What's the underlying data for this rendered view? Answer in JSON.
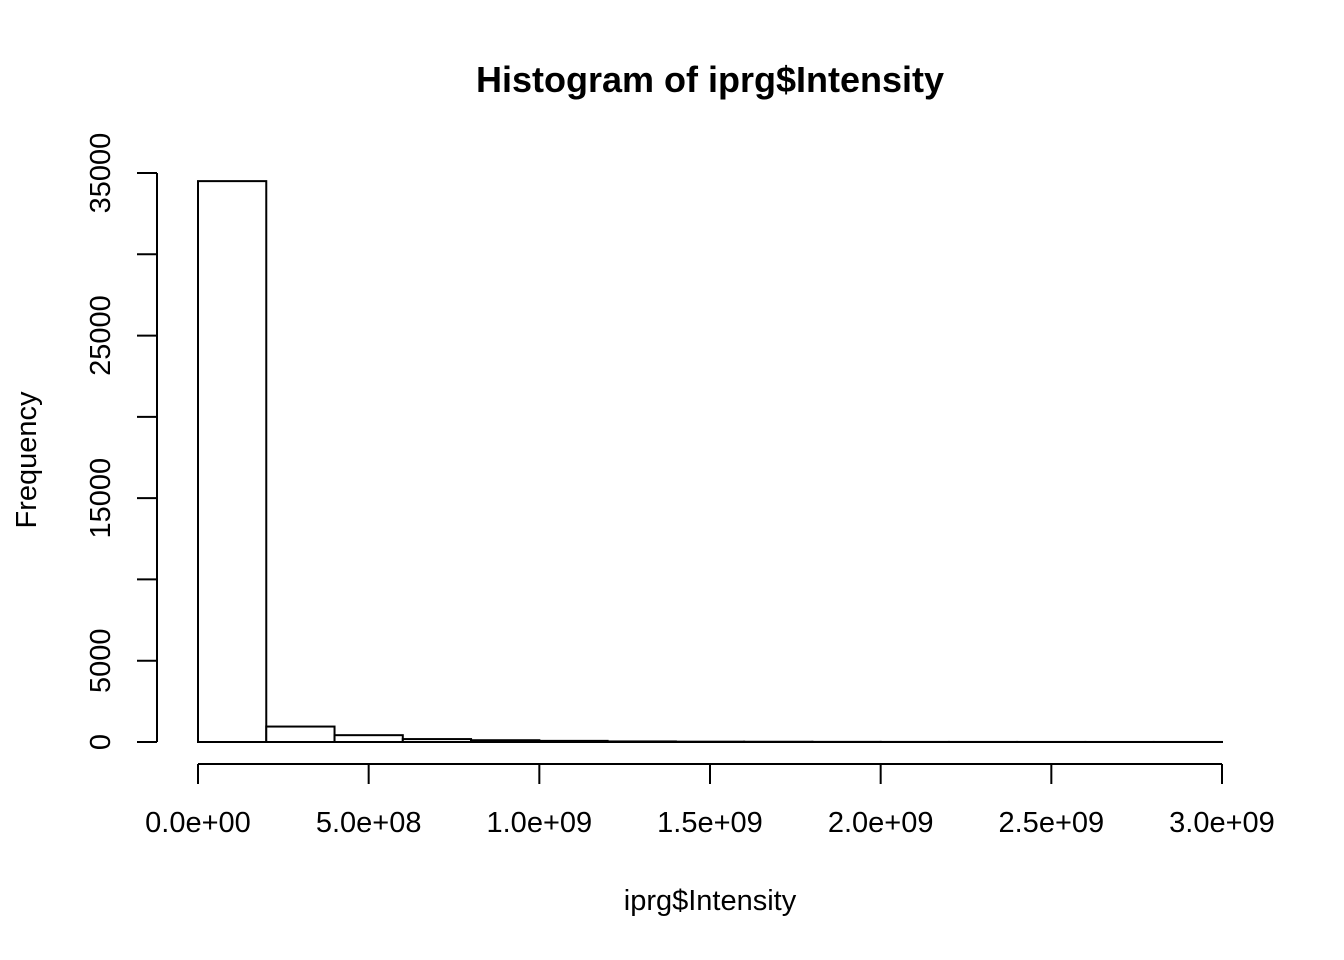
{
  "chart_data": {
    "type": "bar",
    "title": "Histogram of iprg$Intensity",
    "xlabel": "iprg$Intensity",
    "ylabel": "Frequency",
    "bin_width": 200000000,
    "bins": [
      {
        "start": 0,
        "end": 200000000,
        "count": 34500
      },
      {
        "start": 200000000,
        "end": 400000000,
        "count": 950
      },
      {
        "start": 400000000,
        "end": 600000000,
        "count": 420
      },
      {
        "start": 600000000,
        "end": 800000000,
        "count": 180
      },
      {
        "start": 800000000,
        "end": 1000000000,
        "count": 110
      },
      {
        "start": 1000000000,
        "end": 1200000000,
        "count": 70
      },
      {
        "start": 1200000000,
        "end": 1400000000,
        "count": 35
      },
      {
        "start": 1400000000,
        "end": 1600000000,
        "count": 20
      },
      {
        "start": 1600000000,
        "end": 1800000000,
        "count": 15
      },
      {
        "start": 1800000000,
        "end": 2000000000,
        "count": 8
      },
      {
        "start": 2000000000,
        "end": 2200000000,
        "count": 5
      },
      {
        "start": 2200000000,
        "end": 2400000000,
        "count": 4
      },
      {
        "start": 2400000000,
        "end": 2600000000,
        "count": 3
      },
      {
        "start": 2600000000,
        "end": 2800000000,
        "count": 2
      },
      {
        "start": 2800000000,
        "end": 3000000000,
        "count": 2
      }
    ],
    "xlim": [
      0,
      3000000000
    ],
    "ylim": [
      0,
      35000
    ],
    "x_ticks": [
      {
        "value": 0,
        "label": "0.0e+00"
      },
      {
        "value": 500000000,
        "label": "5.0e+08"
      },
      {
        "value": 1000000000,
        "label": "1.0e+09"
      },
      {
        "value": 1500000000,
        "label": "1.5e+09"
      },
      {
        "value": 2000000000,
        "label": "2.0e+09"
      },
      {
        "value": 2500000000,
        "label": "2.5e+09"
      },
      {
        "value": 3000000000,
        "label": "3.0e+09"
      }
    ],
    "y_ticks": [
      {
        "value": 0,
        "label": "0"
      },
      {
        "value": 5000,
        "label": "5000"
      },
      {
        "value": 10000,
        "label": ""
      },
      {
        "value": 15000,
        "label": "15000"
      },
      {
        "value": 20000,
        "label": ""
      },
      {
        "value": 25000,
        "label": "25000"
      },
      {
        "value": 30000,
        "label": ""
      },
      {
        "value": 35000,
        "label": "35000"
      }
    ],
    "grid": false,
    "legend": "none"
  }
}
